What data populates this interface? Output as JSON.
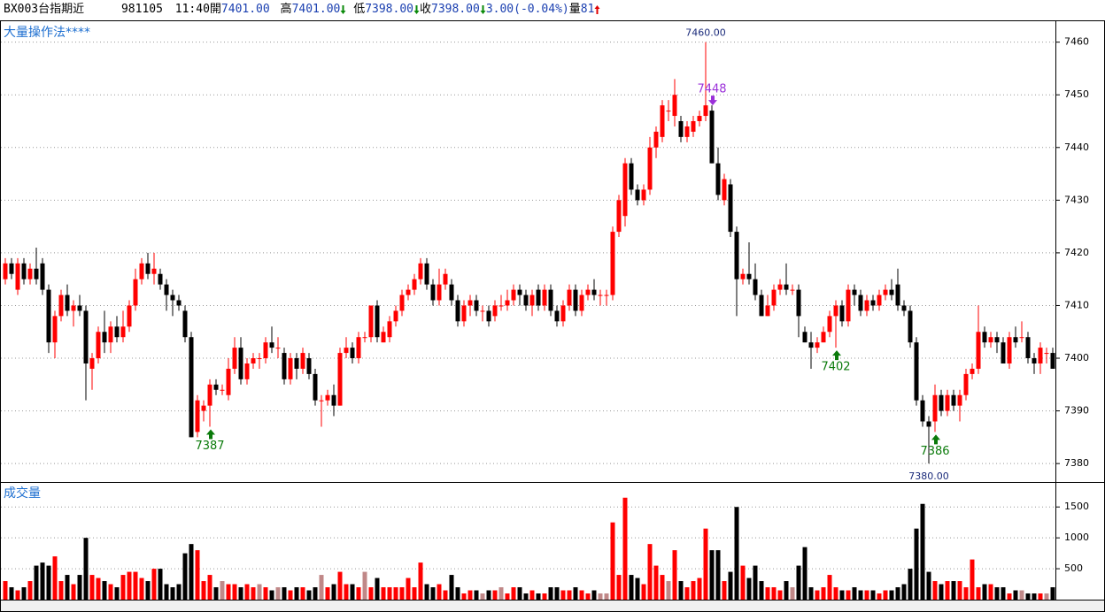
{
  "quote": {
    "code": "BX003台指期近",
    "date": "981105",
    "time": "11:40",
    "open_label": "開",
    "open": "7401.00",
    "high_label": "高",
    "high": "7401.00",
    "low_label": "低",
    "low": "7398.00",
    "close_label": "收",
    "close": "7398.00",
    "change": "3.00",
    "change_pct": "(-0.04%)",
    "volume_label": "量",
    "volume": "81"
  },
  "chart_data": [
    {
      "type": "candlestick",
      "title": "大量操作法****",
      "up_color": "#ff0000",
      "down_color": "#000000",
      "open": [
        7415,
        7418,
        7413,
        7418,
        7415,
        7417,
        7418,
        7413,
        7403,
        7408,
        7412,
        7409,
        7410,
        7409,
        7398,
        7400,
        7405,
        7403,
        7406,
        7404,
        7406,
        7410,
        7415,
        7418,
        7416,
        7416,
        7414,
        7412,
        7411,
        7409,
        7404,
        7386,
        7390,
        7391,
        7395,
        7394,
        7393,
        7398,
        7402,
        7396,
        7399,
        7400,
        7400,
        7403,
        7402,
        7401,
        7396,
        7400,
        7398,
        7400,
        7397,
        7392,
        7392,
        7393,
        7391,
        7401,
        7402,
        7400,
        7404,
        7404,
        7410,
        7403,
        7404,
        7407,
        7409,
        7412,
        7413,
        7415,
        7418,
        7414,
        7411,
        7414,
        7414,
        7411,
        7407,
        7410,
        7411,
        7409,
        7409,
        7408,
        7410,
        7410,
        7411,
        7413,
        7412,
        7410,
        7413,
        7410,
        7413,
        7409,
        7407,
        7410,
        7413,
        7409,
        7412,
        7413,
        7412,
        7412,
        7412,
        7424,
        7427,
        7437,
        7432,
        7430,
        7432,
        7440,
        7442,
        7447,
        7446,
        7445,
        7442,
        7443,
        7445,
        7446,
        7447,
        7437,
        7430,
        7433,
        7424,
        7415,
        7416,
        7415,
        7412,
        7408,
        7410,
        7413,
        7414,
        7413,
        7413,
        7405,
        7403,
        7402,
        7403,
        7405,
        7408,
        7410,
        7407,
        7413,
        7412,
        7409,
        7411,
        7410,
        7412,
        7413,
        7414,
        7410,
        7409,
        7403,
        7392,
        7388,
        7388,
        7393,
        7390,
        7393,
        7391,
        7393,
        7397,
        7398,
        7405,
        7403,
        7404,
        7403,
        7399,
        7404,
        7404,
        7404,
        7400,
        7399,
        7401,
        7401
      ],
      "high": [
        7419,
        7419,
        7419,
        7419,
        7418,
        7421,
        7419,
        7414,
        7409,
        7413,
        7414,
        7411,
        7412,
        7410,
        7401,
        7406,
        7409,
        7407,
        7408,
        7409,
        7411,
        7417,
        7419,
        7420,
        7420,
        7417,
        7415,
        7413,
        7412,
        7410,
        7405,
        7393,
        7392,
        7396,
        7396,
        7395,
        7400,
        7404,
        7404,
        7400,
        7401,
        7401,
        7404,
        7406,
        7404,
        7402,
        7401,
        7401,
        7402,
        7401,
        7398,
        7393,
        7394,
        7395,
        7402,
        7404,
        7403,
        7405,
        7405,
        7410,
        7411,
        7406,
        7408,
        7410,
        7413,
        7414,
        7416,
        7419,
        7419,
        7415,
        7417,
        7417,
        7415,
        7412,
        7411,
        7412,
        7412,
        7410,
        7410,
        7411,
        7412,
        7413,
        7414,
        7414,
        7413,
        7413,
        7414,
        7414,
        7414,
        7410,
        7411,
        7414,
        7414,
        7413,
        7414,
        7415,
        7413,
        7413,
        7425,
        7431,
        7438,
        7438,
        7433,
        7433,
        7442,
        7444,
        7449,
        7449,
        7453,
        7446,
        7445,
        7446,
        7447,
        7460,
        7448,
        7440,
        7435,
        7434,
        7425,
        7417,
        7422,
        7418,
        7413,
        7412,
        7414,
        7415,
        7418,
        7414,
        7414,
        7406,
        7405,
        7404,
        7406,
        7409,
        7411,
        7411,
        7414,
        7414,
        7413,
        7412,
        7412,
        7413,
        7414,
        7415,
        7417,
        7411,
        7410,
        7404,
        7393,
        7389,
        7395,
        7394,
        7394,
        7394,
        7394,
        7398,
        7399,
        7410,
        7406,
        7405,
        7405,
        7404,
        7405,
        7406,
        7407,
        7405,
        7401,
        7403,
        7402,
        7402
      ],
      "low": [
        7414,
        7415,
        7412,
        7414,
        7414,
        7414,
        7412,
        7401,
        7400,
        7407,
        7408,
        7406,
        7408,
        7392,
        7394,
        7399,
        7401,
        7401,
        7403,
        7403,
        7405,
        7409,
        7414,
        7415,
        7414,
        7413,
        7409,
        7408,
        7409,
        7403,
        7385,
        7385,
        7388,
        7387,
        7393,
        7393,
        7392,
        7397,
        7395,
        7395,
        7398,
        7398,
        7399,
        7401,
        7400,
        7395,
        7395,
        7396,
        7397,
        7396,
        7391,
        7387,
        7391,
        7389,
        7391,
        7400,
        7399,
        7399,
        7403,
        7403,
        7403,
        7403,
        7403,
        7406,
        7408,
        7411,
        7412,
        7414,
        7413,
        7410,
        7410,
        7413,
        7410,
        7406,
        7406,
        7408,
        7408,
        7407,
        7406,
        7407,
        7409,
        7409,
        7410,
        7410,
        7409,
        7408,
        7409,
        7409,
        7408,
        7406,
        7406,
        7409,
        7408,
        7408,
        7411,
        7411,
        7410,
        7410,
        7411,
        7423,
        7425,
        7431,
        7429,
        7429,
        7431,
        7438,
        7441,
        7445,
        7444,
        7441,
        7441,
        7442,
        7444,
        7445,
        7437,
        7430,
        7429,
        7423,
        7408,
        7414,
        7414,
        7411,
        7408,
        7408,
        7409,
        7412,
        7412,
        7412,
        7404,
        7403,
        7398,
        7401,
        7403,
        7404,
        7402,
        7406,
        7406,
        7410,
        7408,
        7408,
        7409,
        7409,
        7411,
        7411,
        7409,
        7408,
        7402,
        7391,
        7387,
        7380,
        7386,
        7389,
        7389,
        7390,
        7388,
        7392,
        7396,
        7397,
        7402,
        7402,
        7401,
        7399,
        7398,
        7402,
        7403,
        7399,
        7397,
        7397,
        7399,
        7398
      ],
      "close": [
        7418,
        7416,
        7418,
        7415,
        7417,
        7415,
        7413,
        7403,
        7408,
        7412,
        7409,
        7410,
        7409,
        7399,
        7400,
        7405,
        7403,
        7406,
        7404,
        7406,
        7410,
        7415,
        7418,
        7416,
        7417,
        7414,
        7412,
        7411,
        7410,
        7404,
        7385,
        7392,
        7391,
        7395,
        7394,
        7394,
        7398,
        7402,
        7396,
        7399,
        7400,
        7400,
        7403,
        7402,
        7402,
        7396,
        7400,
        7398,
        7401,
        7397,
        7392,
        7392,
        7393,
        7391,
        7401,
        7402,
        7400,
        7404,
        7404,
        7410,
        7404,
        7405,
        7407,
        7409,
        7412,
        7413,
        7415,
        7418,
        7414,
        7411,
        7414,
        7416,
        7411,
        7407,
        7410,
        7411,
        7409,
        7409,
        7407,
        7410,
        7410,
        7411,
        7413,
        7412,
        7410,
        7412,
        7410,
        7413,
        7409,
        7407,
        7410,
        7413,
        7409,
        7412,
        7413,
        7412,
        7412,
        7412,
        7424,
        7430,
        7437,
        7432,
        7430,
        7432,
        7440,
        7443,
        7448,
        7447,
        7450,
        7442,
        7444,
        7445,
        7446,
        7448,
        7437,
        7431,
        7434,
        7424,
        7415,
        7416,
        7415,
        7412,
        7408,
        7410,
        7413,
        7414,
        7413,
        7413,
        7408,
        7403,
        7402,
        7403,
        7405,
        7408,
        7410,
        7407,
        7413,
        7412,
        7409,
        7411,
        7410,
        7412,
        7413,
        7412,
        7410,
        7409,
        7403,
        7392,
        7388,
        7387,
        7393,
        7390,
        7393,
        7391,
        7393,
        7397,
        7398,
        7405,
        7403,
        7404,
        7403,
        7399,
        7404,
        7403,
        7404,
        7400,
        7399,
        7402,
        7401,
        7398
      ],
      "ylim": [
        7376.5,
        7463.3
      ],
      "yticks": [
        7380,
        7390,
        7400,
        7410,
        7420,
        7430,
        7440,
        7450,
        7460
      ],
      "grid": true,
      "extremes": {
        "max": {
          "value": 7460,
          "label": "7460.00"
        },
        "min": {
          "value": 7380,
          "label": "7380.00"
        }
      },
      "annotations": [
        {
          "label": "7448",
          "value": 7448,
          "direction": "down",
          "color": "#9b30d9"
        },
        {
          "label": "7387",
          "value": 7387,
          "direction": "up",
          "color": "#0a7a0a"
        },
        {
          "label": "7402",
          "value": 7402,
          "direction": "up",
          "color": "#0a7a0a"
        },
        {
          "label": "7386",
          "value": 7386,
          "direction": "up",
          "color": "#0a7a0a"
        }
      ]
    },
    {
      "type": "volume",
      "title": "成交量",
      "flat_color": "#c08888",
      "values": [
        300,
        200,
        150,
        200,
        300,
        550,
        600,
        550,
        700,
        300,
        400,
        250,
        400,
        1000,
        400,
        350,
        300,
        250,
        200,
        400,
        450,
        450,
        350,
        300,
        500,
        500,
        250,
        200,
        250,
        750,
        900,
        800,
        300,
        400,
        200,
        300,
        250,
        250,
        200,
        250,
        200,
        250,
        200,
        150,
        200,
        200,
        150,
        200,
        200,
        150,
        200,
        400,
        200,
        250,
        450,
        250,
        250,
        200,
        450,
        200,
        350,
        200,
        200,
        200,
        200,
        350,
        200,
        600,
        250,
        200,
        250,
        150,
        400,
        200,
        100,
        150,
        150,
        100,
        150,
        150,
        200,
        100,
        200,
        200,
        100,
        150,
        100,
        100,
        200,
        200,
        150,
        150,
        200,
        150,
        100,
        150,
        100,
        100,
        1250,
        400,
        1650,
        400,
        350,
        250,
        900,
        550,
        400,
        300,
        800,
        300,
        200,
        300,
        350,
        1150,
        800,
        800,
        300,
        450,
        1500,
        550,
        350,
        550,
        300,
        200,
        200,
        150,
        300,
        200,
        550,
        850,
        200,
        150,
        200,
        400,
        200,
        150,
        150,
        200,
        150,
        150,
        150,
        100,
        150,
        150,
        200,
        250,
        500,
        1150,
        1550,
        450,
        300,
        250,
        300,
        300,
        300,
        200,
        650,
        200,
        250,
        250,
        200,
        200,
        100,
        150,
        150,
        100,
        100,
        100,
        100,
        200
      ],
      "ylim": [
        0,
        1890
      ],
      "yticks": [
        500,
        1000,
        1500
      ]
    }
  ]
}
